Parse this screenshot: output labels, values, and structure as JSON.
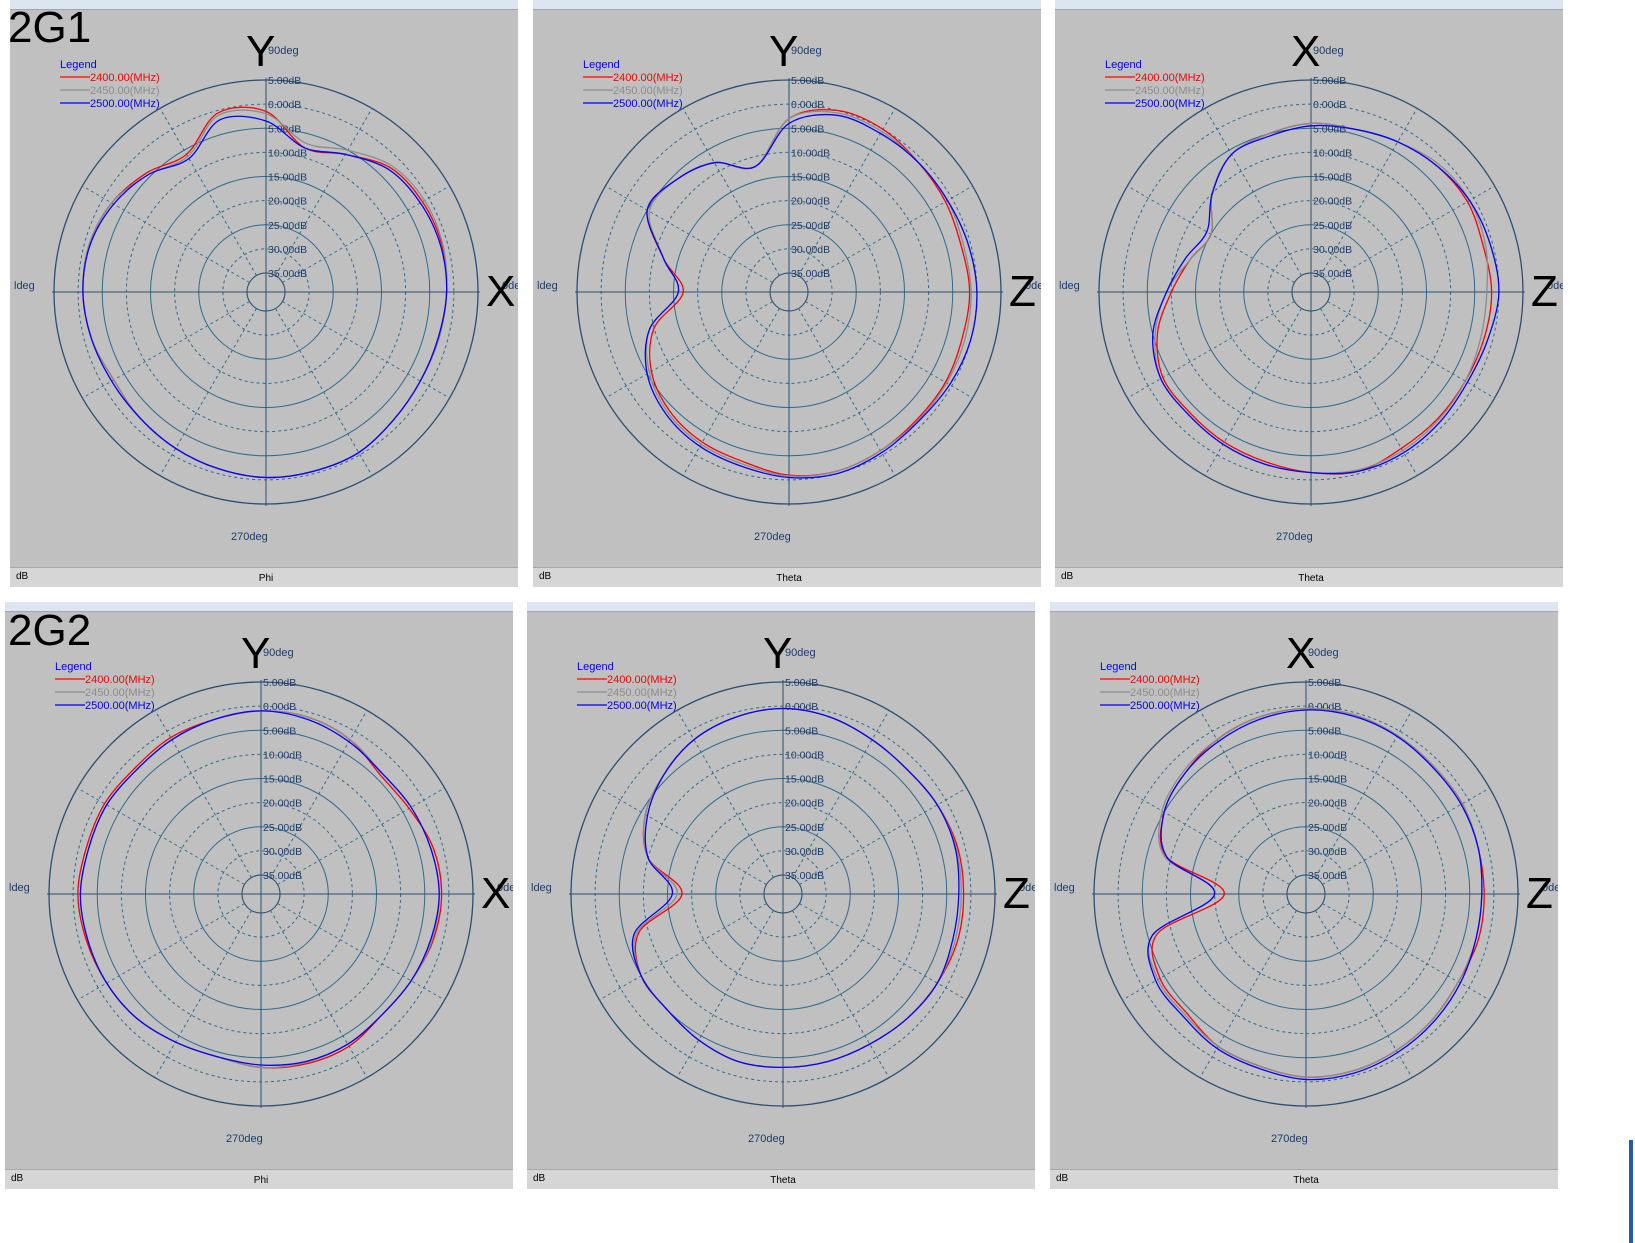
{
  "rows": [
    {
      "label": "2G1"
    },
    {
      "label": "2G2"
    }
  ],
  "legend": {
    "title": "Legend",
    "entries": [
      {
        "label": "2400.00(MHz)",
        "color": "#ff0000"
      },
      {
        "label": "2450.00(MHz)",
        "color": "#8c8c8c"
      },
      {
        "label": "2500.00(MHz)",
        "color": "#0000ff"
      }
    ]
  },
  "common": {
    "ring_labels": [
      "5.00dB",
      "0.00dB",
      "5.00dB",
      "10.00dB",
      "15.00dB",
      "20.00dB",
      "25.00dB",
      "30.00dB",
      "35.00dB"
    ],
    "angle_top": "90deg",
    "angle_left": "ldeg",
    "angle_right": "0deg",
    "angle_bottom": "270deg",
    "unit_label": "dB"
  },
  "panels": [
    {
      "top_axis": "Y",
      "right_axis": "X",
      "angle_name": "Phi"
    },
    {
      "top_axis": "Y",
      "right_axis": "Z",
      "angle_name": "Theta"
    },
    {
      "top_axis": "X",
      "right_axis": "Z",
      "angle_name": "Theta"
    },
    {
      "top_axis": "Y",
      "right_axis": "X",
      "angle_name": "Phi"
    },
    {
      "top_axis": "Y",
      "right_axis": "Z",
      "angle_name": "Theta"
    },
    {
      "top_axis": "X",
      "right_axis": "Z",
      "angle_name": "Theta"
    }
  ],
  "chart_data": [
    {
      "type": "polar",
      "panel": "2G1 left",
      "angle_axis": "Phi",
      "r_unit": "dB",
      "r_max": 5,
      "r_min": -35,
      "series": [
        {
          "name": "2400.00(MHz)",
          "angles": [
            0,
            15,
            30,
            45,
            60,
            75,
            90,
            105,
            120,
            135,
            150,
            165,
            180,
            195,
            210,
            225,
            240,
            255,
            270,
            285,
            300,
            315,
            330,
            345
          ],
          "values": [
            -1.5,
            -1.2,
            -1.5,
            -2.5,
            -6,
            -8,
            -1.5,
            -0.5,
            -6,
            -4,
            -2,
            -1,
            -1,
            -1.5,
            -2.5,
            -2,
            -1.5,
            -1,
            -0.5,
            -0.5,
            -0.5,
            -1.5,
            -2,
            -2
          ]
        },
        {
          "name": "2450.00(MHz)",
          "angles": [
            0,
            15,
            30,
            45,
            60,
            75,
            90,
            105,
            120,
            135,
            150,
            165,
            180,
            195,
            210,
            225,
            240,
            255,
            270,
            285,
            300,
            315,
            330,
            345
          ],
          "values": [
            -1.5,
            -1,
            -1,
            -2,
            -5,
            -7,
            -2,
            -1,
            -6.5,
            -4.5,
            -2,
            -1,
            -1,
            -1.5,
            -2.5,
            -2,
            -1.5,
            -1,
            -0.5,
            -0.5,
            -0.5,
            -1.5,
            -2,
            -1.8
          ]
        },
        {
          "name": "2500.00(MHz)",
          "angles": [
            0,
            15,
            30,
            45,
            60,
            75,
            90,
            105,
            120,
            135,
            150,
            165,
            180,
            195,
            210,
            225,
            240,
            255,
            270,
            285,
            300,
            315,
            330,
            345
          ],
          "values": [
            -1.5,
            -1.5,
            -2,
            -3,
            -6,
            -8,
            -3.5,
            -2,
            -7,
            -4.5,
            -2.5,
            -1.2,
            -1,
            -1.5,
            -2,
            -2,
            -1.5,
            -1,
            -0.5,
            -0.5,
            -0.5,
            -1.5,
            -2,
            -2
          ]
        }
      ]
    },
    {
      "type": "polar",
      "panel": "2G1 middle",
      "angle_axis": "Theta",
      "r_unit": "dB",
      "r_max": 5,
      "r_min": -35,
      "series": [
        {
          "name": "2400.00(MHz)",
          "angles": [
            0,
            15,
            30,
            45,
            60,
            75,
            90,
            105,
            120,
            135,
            150,
            165,
            180,
            195,
            210,
            225,
            240,
            255,
            270,
            285,
            300,
            315,
            330,
            345
          ],
          "values": [
            -1.5,
            -2,
            -1.5,
            -1,
            0,
            0,
            -3,
            -12,
            -8,
            -6,
            -5,
            -12,
            -17,
            -10,
            -6,
            -4,
            -3,
            -2.5,
            -1,
            -0.5,
            -1,
            -1.5,
            -1.5,
            -1.8
          ]
        },
        {
          "name": "2450.00(MHz)",
          "angles": [
            0,
            15,
            30,
            45,
            60,
            75,
            90,
            105,
            120,
            135,
            150,
            165,
            180,
            195,
            210,
            225,
            240,
            255,
            270,
            285,
            300,
            315,
            330,
            345
          ],
          "values": [
            -1.2,
            -1.5,
            -1,
            -1,
            -0.5,
            -0.5,
            -3,
            -12,
            -8,
            -6,
            -5.5,
            -12,
            -16,
            -9,
            -5.5,
            -3.5,
            -2.5,
            -2,
            -0.8,
            -0.5,
            -1,
            -1.2,
            -1.2,
            -1.2
          ]
        },
        {
          "name": "2500.00(MHz)",
          "angles": [
            0,
            15,
            30,
            45,
            60,
            75,
            90,
            105,
            120,
            135,
            150,
            165,
            180,
            195,
            210,
            225,
            240,
            255,
            270,
            285,
            300,
            315,
            330,
            345
          ],
          "values": [
            0,
            -0.5,
            -1,
            -1,
            -1,
            -1,
            -4,
            -12,
            -8,
            -6,
            -5,
            -12,
            -16,
            -9,
            -5,
            -3,
            -2,
            -1.5,
            -0.5,
            0,
            -0.5,
            -1,
            -0.5,
            0
          ]
        }
      ]
    },
    {
      "type": "polar",
      "panel": "2G1 right",
      "angle_axis": "Theta",
      "r_unit": "dB",
      "r_max": 5,
      "r_min": -35,
      "series": [
        {
          "name": "2400.00(MHz)",
          "angles": [
            0,
            15,
            30,
            45,
            60,
            75,
            90,
            105,
            120,
            135,
            150,
            165,
            180,
            195,
            210,
            225,
            240,
            255,
            270,
            285,
            300,
            315,
            330,
            345
          ],
          "values": [
            -1.5,
            -2,
            -1.5,
            -2,
            -3,
            -4,
            -4,
            -5,
            -6,
            -10,
            -15,
            -13,
            -10,
            -6,
            -3.5,
            -3.5,
            -3,
            -2.5,
            -1.5,
            -0.5,
            -1.5,
            -1.8,
            -2,
            -1.8
          ]
        },
        {
          "name": "2450.00(MHz)",
          "angles": [
            0,
            15,
            30,
            45,
            60,
            75,
            90,
            105,
            120,
            135,
            150,
            165,
            180,
            195,
            210,
            225,
            240,
            255,
            270,
            285,
            300,
            315,
            330,
            345
          ],
          "values": [
            -2.5,
            -1.5,
            -1,
            -1.5,
            -3,
            -4,
            -4,
            -5,
            -6,
            -10,
            -15,
            -13,
            -9,
            -5.5,
            -3,
            -3,
            -2.5,
            -2,
            -1.5,
            -0.8,
            -1,
            -1.5,
            -2,
            -2.5
          ]
        },
        {
          "name": "2500.00(MHz)",
          "angles": [
            0,
            15,
            30,
            45,
            60,
            75,
            90,
            105,
            120,
            135,
            150,
            165,
            180,
            195,
            210,
            225,
            240,
            255,
            270,
            285,
            300,
            315,
            330,
            345
          ],
          "values": [
            0,
            -0.5,
            -1,
            -2,
            -3,
            -4,
            -4.5,
            -5.5,
            -6,
            -10,
            -14,
            -12,
            -9,
            -5,
            -3,
            -3,
            -2.5,
            -2,
            -1.5,
            -0.5,
            -0.5,
            -1,
            -1.5,
            -1
          ]
        }
      ]
    },
    {
      "type": "polar",
      "panel": "2G2 left",
      "angle_axis": "Phi",
      "r_unit": "dB",
      "r_max": 5,
      "r_min": -35,
      "series": [
        {
          "name": "2400.00(MHz)",
          "angles": [
            0,
            15,
            30,
            45,
            60,
            75,
            90,
            105,
            120,
            135,
            150,
            165,
            180,
            195,
            210,
            225,
            240,
            255,
            270,
            285,
            300,
            315,
            330,
            345
          ],
          "values": [
            -1.5,
            -2,
            -3.5,
            -4,
            -2,
            -1,
            -1,
            -1.5,
            -1.5,
            -2,
            -1.5,
            -1.5,
            -1,
            -1.5,
            -2,
            -2.5,
            -3.5,
            -4,
            -3,
            -2.5,
            -2.5,
            -3.5,
            -3,
            -2
          ]
        },
        {
          "name": "2450.00(MHz)",
          "angles": [
            0,
            15,
            30,
            45,
            60,
            75,
            90,
            105,
            120,
            135,
            150,
            165,
            180,
            195,
            210,
            225,
            240,
            255,
            270,
            285,
            300,
            315,
            330,
            345
          ],
          "values": [
            -2,
            -2.5,
            -3,
            -3.5,
            -2,
            -1,
            -1,
            -1.5,
            -2,
            -2.5,
            -2,
            -2,
            -1.5,
            -1.8,
            -2,
            -2.5,
            -3.5,
            -4,
            -3,
            -2.8,
            -3,
            -3.5,
            -3,
            -2.2
          ]
        },
        {
          "name": "2500.00(MHz)",
          "angles": [
            0,
            15,
            30,
            45,
            60,
            75,
            90,
            105,
            120,
            135,
            150,
            165,
            180,
            195,
            210,
            225,
            240,
            255,
            270,
            285,
            300,
            315,
            330,
            345
          ],
          "values": [
            -2,
            -2.5,
            -3,
            -3.5,
            -2.5,
            -1.5,
            -1,
            -1.5,
            -2,
            -2.5,
            -2,
            -2,
            -1.5,
            -1.8,
            -2,
            -2.5,
            -3.5,
            -4,
            -3.5,
            -3,
            -3,
            -3.5,
            -3,
            -2.5
          ]
        }
      ]
    },
    {
      "type": "polar",
      "panel": "2G2 middle",
      "angle_axis": "Theta",
      "r_unit": "dB",
      "r_max": 5,
      "r_min": -35,
      "series": [
        {
          "name": "2400.00(MHz)",
          "angles": [
            0,
            15,
            30,
            45,
            60,
            75,
            90,
            105,
            120,
            135,
            150,
            165,
            180,
            195,
            210,
            225,
            240,
            255,
            270,
            285,
            300,
            315,
            330,
            345
          ],
          "values": [
            -1.5,
            -1.5,
            -2,
            -2.5,
            -2,
            -1,
            -0.5,
            -1,
            -2,
            -4,
            -6,
            -10,
            -18,
            -8,
            -5,
            -5,
            -4,
            -3,
            -3,
            -3,
            -3,
            -2.5,
            -2,
            -1.5
          ]
        },
        {
          "name": "2450.00(MHz)",
          "angles": [
            0,
            15,
            30,
            45,
            60,
            75,
            90,
            105,
            120,
            135,
            150,
            165,
            180,
            195,
            210,
            225,
            240,
            255,
            270,
            285,
            300,
            315,
            330,
            345
          ],
          "values": [
            -2,
            -1.8,
            -2,
            -2.5,
            -2,
            -1,
            -0.5,
            -1,
            -2,
            -4,
            -6,
            -10,
            -17,
            -7.5,
            -5,
            -5,
            -4,
            -3,
            -3,
            -3,
            -3,
            -2.5,
            -2,
            -2
          ]
        },
        {
          "name": "2500.00(MHz)",
          "angles": [
            0,
            15,
            30,
            45,
            60,
            75,
            90,
            105,
            120,
            135,
            150,
            165,
            180,
            195,
            210,
            225,
            240,
            255,
            270,
            285,
            300,
            315,
            330,
            345
          ],
          "values": [
            -2.5,
            -2,
            -2,
            -2.5,
            -2,
            -1,
            -0.5,
            -1,
            -2,
            -4,
            -6.5,
            -10,
            -16,
            -7,
            -5,
            -5,
            -4,
            -3,
            -3,
            -3,
            -3,
            -2.5,
            -2,
            -2.5
          ]
        }
      ]
    },
    {
      "type": "polar",
      "panel": "2G2 right",
      "angle_axis": "Theta",
      "r_unit": "dB",
      "r_max": 5,
      "r_min": -35,
      "series": [
        {
          "name": "2400.00(MHz)",
          "angles": [
            0,
            15,
            30,
            45,
            60,
            75,
            90,
            105,
            120,
            135,
            150,
            165,
            180,
            195,
            210,
            225,
            240,
            255,
            270,
            285,
            300,
            315,
            330,
            345
          ],
          "values": [
            -2,
            -2,
            -1.5,
            -1.5,
            -1,
            -0.5,
            -0.5,
            -1,
            -2,
            -3.5,
            -5,
            -9,
            -22,
            -7,
            -4,
            -4,
            -2.5,
            -2,
            -1,
            -1,
            -1.5,
            -2,
            -2.5,
            -2
          ]
        },
        {
          "name": "2450.00(MHz)",
          "angles": [
            0,
            15,
            30,
            45,
            60,
            75,
            90,
            105,
            120,
            135,
            150,
            165,
            180,
            195,
            210,
            225,
            240,
            255,
            270,
            285,
            300,
            315,
            330,
            345
          ],
          "values": [
            -2.5,
            -2,
            -1.5,
            -1.5,
            -1,
            -0.5,
            -0.5,
            -1,
            -2,
            -3,
            -4.5,
            -8.5,
            -20,
            -6,
            -3.5,
            -3.5,
            -2.5,
            -2,
            -1,
            -1,
            -1.5,
            -2,
            -2.5,
            -2.5
          ]
        },
        {
          "name": "2500.00(MHz)",
          "angles": [
            0,
            15,
            30,
            45,
            60,
            75,
            90,
            105,
            120,
            135,
            150,
            165,
            180,
            195,
            210,
            225,
            240,
            255,
            270,
            285,
            300,
            315,
            330,
            345
          ],
          "values": [
            -2.5,
            -2,
            -1.8,
            -1.8,
            -1.2,
            -0.8,
            -0.8,
            -1.5,
            -2.5,
            -3.5,
            -5,
            -9,
            -20,
            -6,
            -3,
            -3,
            -2,
            -1.5,
            -0.5,
            -0.5,
            -1,
            -1.5,
            -2,
            -2.5
          ]
        }
      ]
    }
  ]
}
